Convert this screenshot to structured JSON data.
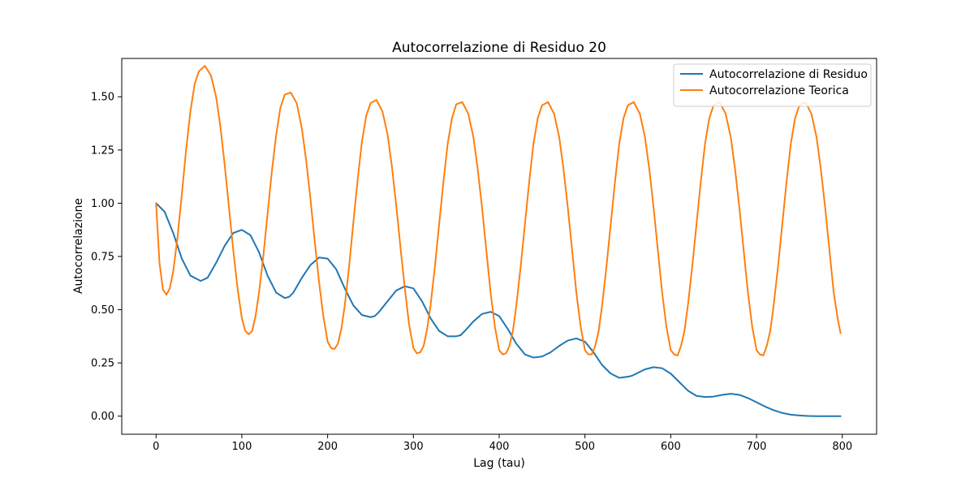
{
  "chart_data": {
    "type": "line",
    "title": "Autocorrelazione di Residuo 20",
    "xlabel": "Lag (tau)",
    "ylabel": "Autocorrelazione",
    "xlim": [
      -40,
      840
    ],
    "ylim": [
      -0.085,
      1.68
    ],
    "xticks": [
      0,
      100,
      200,
      300,
      400,
      500,
      600,
      700,
      800
    ],
    "yticks": [
      0.0,
      0.25,
      0.5,
      0.75,
      1.0,
      1.25,
      1.5
    ],
    "ytick_labels": [
      "0.00",
      "0.25",
      "0.50",
      "0.75",
      "1.00",
      "1.25",
      "1.50"
    ],
    "xtick_labels": [
      "0",
      "100",
      "200",
      "300",
      "400",
      "500",
      "600",
      "700",
      "800"
    ],
    "grid": false,
    "legend_position": "top-right",
    "series": [
      {
        "name": "Autocorrelazione di Residuo",
        "color": "#1f77b4",
        "x": [
          0,
          10,
          20,
          30,
          40,
          52,
          60,
          70,
          80,
          90,
          100,
          110,
          120,
          130,
          140,
          150,
          155,
          160,
          170,
          180,
          190,
          200,
          210,
          220,
          230,
          240,
          250,
          255,
          260,
          270,
          280,
          290,
          300,
          310,
          320,
          330,
          340,
          350,
          355,
          360,
          370,
          380,
          390,
          400,
          410,
          420,
          430,
          440,
          450,
          455,
          460,
          470,
          480,
          490,
          500,
          510,
          520,
          530,
          540,
          550,
          555,
          560,
          570,
          580,
          590,
          600,
          610,
          620,
          630,
          640,
          650,
          660,
          670,
          680,
          690,
          700,
          710,
          720,
          730,
          740,
          750,
          760,
          770,
          780,
          790,
          798
        ],
        "y": [
          1.0,
          0.96,
          0.86,
          0.74,
          0.66,
          0.635,
          0.65,
          0.72,
          0.8,
          0.86,
          0.875,
          0.85,
          0.77,
          0.66,
          0.58,
          0.555,
          0.56,
          0.58,
          0.65,
          0.71,
          0.745,
          0.74,
          0.69,
          0.6,
          0.52,
          0.475,
          0.465,
          0.47,
          0.49,
          0.54,
          0.59,
          0.61,
          0.6,
          0.54,
          0.46,
          0.4,
          0.375,
          0.375,
          0.38,
          0.4,
          0.445,
          0.48,
          0.49,
          0.47,
          0.41,
          0.34,
          0.29,
          0.275,
          0.28,
          0.29,
          0.3,
          0.33,
          0.355,
          0.365,
          0.35,
          0.3,
          0.24,
          0.2,
          0.18,
          0.185,
          0.19,
          0.2,
          0.22,
          0.23,
          0.225,
          0.2,
          0.16,
          0.12,
          0.095,
          0.09,
          0.092,
          0.1,
          0.105,
          0.1,
          0.085,
          0.065,
          0.045,
          0.028,
          0.015,
          0.007,
          0.003,
          0.001,
          0.0,
          0.0,
          0.0,
          0.0
        ]
      },
      {
        "name": "Autocorrelazione Teorica",
        "color": "#ff7f0e",
        "x": [
          0,
          4,
          8,
          12,
          16,
          20,
          25,
          30,
          35,
          40,
          45,
          50,
          57,
          64,
          70,
          75,
          80,
          85,
          90,
          95,
          100,
          104,
          108,
          112,
          116,
          120,
          125,
          130,
          135,
          140,
          145,
          150,
          157,
          164,
          170,
          175,
          180,
          185,
          190,
          195,
          200,
          204,
          208,
          212,
          216,
          220,
          225,
          230,
          235,
          240,
          245,
          250,
          257,
          264,
          270,
          275,
          280,
          285,
          290,
          295,
          300,
          304,
          308,
          312,
          316,
          320,
          325,
          330,
          335,
          340,
          345,
          350,
          357,
          364,
          370,
          375,
          380,
          385,
          390,
          395,
          400,
          404,
          408,
          412,
          416,
          420,
          425,
          430,
          435,
          440,
          445,
          450,
          457,
          464,
          470,
          475,
          480,
          485,
          490,
          495,
          500,
          504,
          508,
          512,
          516,
          520,
          525,
          530,
          535,
          540,
          545,
          550,
          557,
          564,
          570,
          575,
          580,
          585,
          590,
          595,
          600,
          604,
          608,
          612,
          616,
          620,
          625,
          630,
          635,
          640,
          645,
          650,
          657,
          664,
          670,
          675,
          680,
          685,
          690,
          695,
          700,
          704,
          708,
          712,
          716,
          720,
          725,
          730,
          735,
          740,
          745,
          750,
          757,
          764,
          770,
          775,
          780,
          785,
          790,
          795,
          798
        ],
        "y": [
          1.0,
          0.72,
          0.595,
          0.57,
          0.6,
          0.68,
          0.84,
          1.04,
          1.25,
          1.43,
          1.56,
          1.62,
          1.645,
          1.6,
          1.5,
          1.36,
          1.18,
          0.98,
          0.78,
          0.6,
          0.46,
          0.4,
          0.385,
          0.4,
          0.47,
          0.58,
          0.75,
          0.95,
          1.15,
          1.32,
          1.45,
          1.51,
          1.52,
          1.47,
          1.35,
          1.2,
          1.02,
          0.82,
          0.63,
          0.47,
          0.35,
          0.32,
          0.315,
          0.34,
          0.41,
          0.52,
          0.7,
          0.91,
          1.11,
          1.29,
          1.41,
          1.47,
          1.485,
          1.43,
          1.32,
          1.17,
          0.99,
          0.79,
          0.6,
          0.43,
          0.32,
          0.295,
          0.3,
          0.33,
          0.41,
          0.52,
          0.7,
          0.9,
          1.1,
          1.28,
          1.4,
          1.465,
          1.475,
          1.42,
          1.31,
          1.16,
          0.98,
          0.78,
          0.58,
          0.42,
          0.31,
          0.29,
          0.295,
          0.33,
          0.4,
          0.52,
          0.7,
          0.9,
          1.1,
          1.28,
          1.4,
          1.46,
          1.475,
          1.42,
          1.31,
          1.16,
          0.98,
          0.78,
          0.58,
          0.42,
          0.31,
          0.29,
          0.29,
          0.33,
          0.4,
          0.52,
          0.7,
          0.9,
          1.1,
          1.28,
          1.4,
          1.46,
          1.475,
          1.42,
          1.31,
          1.16,
          0.98,
          0.78,
          0.58,
          0.42,
          0.31,
          0.29,
          0.285,
          0.33,
          0.4,
          0.52,
          0.7,
          0.9,
          1.1,
          1.28,
          1.4,
          1.46,
          1.475,
          1.42,
          1.31,
          1.16,
          0.98,
          0.78,
          0.58,
          0.42,
          0.31,
          0.29,
          0.285,
          0.33,
          0.4,
          0.52,
          0.7,
          0.9,
          1.1,
          1.28,
          1.4,
          1.46,
          1.475,
          1.42,
          1.31,
          1.16,
          0.98,
          0.78,
          0.58,
          0.45,
          0.39
        ]
      }
    ]
  }
}
